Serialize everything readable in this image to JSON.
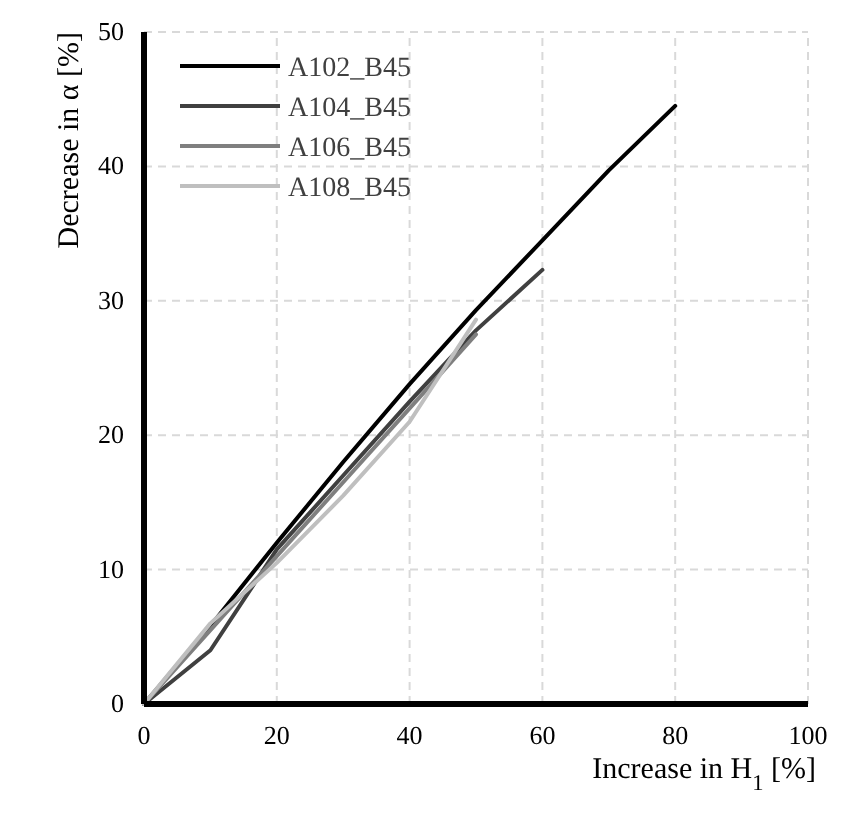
{
  "chart_data": {
    "type": "line",
    "xlabel": "Increase in H$_{1}$ [%]",
    "ylabel": "Decrease in α [%]",
    "xlim": [
      0,
      100
    ],
    "xticks": [
      0,
      20,
      40,
      60,
      80,
      100
    ],
    "ylim": [
      0,
      50
    ],
    "yticks": [
      0,
      10,
      20,
      30,
      40,
      50
    ],
    "grid": true,
    "legend": "top left",
    "line_style": "solid",
    "marker": "none",
    "series": [
      {
        "name": "A102_B45",
        "color": "#000000",
        "x": [
          0,
          10,
          20,
          30,
          40,
          50,
          60,
          70,
          80
        ],
        "values": [
          0,
          5.8,
          12,
          18,
          23.8,
          29.3,
          34.5,
          39.7,
          44.5
        ]
      },
      {
        "name": "A104_B45",
        "color": "#404040",
        "x": [
          0,
          10,
          20,
          30,
          40,
          50,
          60
        ],
        "values": [
          0,
          4,
          11.5,
          17,
          22.5,
          27.8,
          32.3
        ]
      },
      {
        "name": "A106_B45",
        "color": "#7f7f7f",
        "x": [
          0,
          10,
          20,
          30,
          40,
          50
        ],
        "values": [
          0,
          5.5,
          11,
          16.5,
          22,
          27.5
        ]
      },
      {
        "name": "A108_B45",
        "color": "#bfbfbf",
        "x": [
          0,
          10,
          20,
          30,
          40,
          50
        ],
        "values": [
          0,
          6,
          10.5,
          15.5,
          21,
          28.6
        ]
      }
    ]
  }
}
